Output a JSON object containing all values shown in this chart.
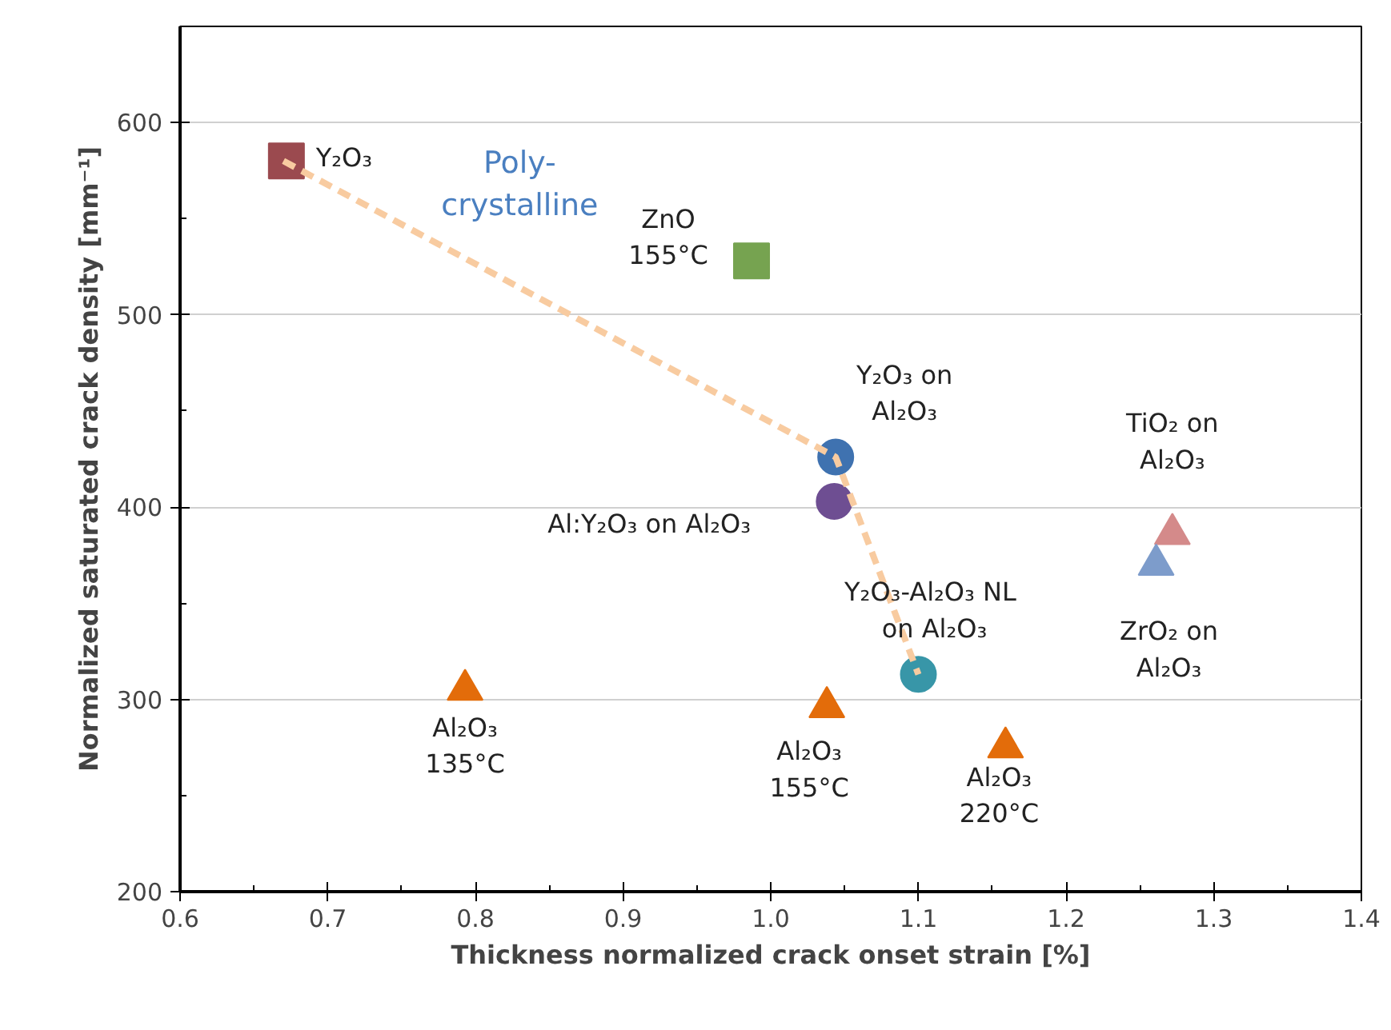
{
  "chart_data": {
    "type": "scatter",
    "xlabel": "Thickness normalized crack onset strain [%]",
    "ylabel": "Normalized saturated crack density [mm⁻¹]",
    "xlim": [
      0.6,
      1.4
    ],
    "xticks": [
      0.6,
      0.7,
      0.8,
      0.9,
      {
        "value": 1.0,
        "label": "1.0"
      },
      1.1,
      1.2,
      1.3,
      1.4
    ],
    "ylim": [
      200,
      650
    ],
    "yticks": [
      200,
      300,
      400,
      500,
      600
    ],
    "grid": "y",
    "annotations": [
      "Poly-\ncrystalline"
    ],
    "series": [
      {
        "type": "line",
        "x": [
          0.67,
          1.044,
          1.1
        ],
        "values": [
          580,
          426,
          313
        ],
        "color": "#f8cba0",
        "line_style": "dashed",
        "marker": "none"
      },
      {
        "name": "Y₂O₃",
        "x": [
          0.672
        ],
        "values": [
          580
        ],
        "color": "#9b4a4f",
        "marker": "square"
      },
      {
        "name": "ZnO\n155°C",
        "x": [
          0.987
        ],
        "values": [
          528
        ],
        "color": "#76a350",
        "marker": "square"
      },
      {
        "name": "Y₂O₃ on\nAl₂O₃",
        "x": [
          1.044
        ],
        "values": [
          426
        ],
        "color": "#3f72b0",
        "marker": "circle"
      },
      {
        "name": "Al:Y₂O₃  on Al₂O₃",
        "x": [
          1.043
        ],
        "values": [
          403
        ],
        "color": "#6e4e92",
        "marker": "circle"
      },
      {
        "name": "Y₂O₃-Al₂O₃  NL\non Al₂O₃",
        "x": [
          1.1
        ],
        "values": [
          313
        ],
        "color": "#3896a8",
        "marker": "circle"
      },
      {
        "name": "TiO₂ on\nAl₂O₃",
        "x": [
          1.272
        ],
        "values": [
          386
        ],
        "color": "#d48a8a",
        "marker": "triangle"
      },
      {
        "name": "ZrO₂ on\nAl₂O₃",
        "x": [
          1.261
        ],
        "values": [
          370
        ],
        "color": "#7d9ccb",
        "marker": "triangle"
      },
      {
        "name": "Al₂O₃\n135°C",
        "x": [
          0.793
        ],
        "values": [
          305
        ],
        "color": "#e36c0a",
        "marker": "triangle"
      },
      {
        "name": "Al₂O₃\n155°C",
        "x": [
          1.038
        ],
        "values": [
          296
        ],
        "color": "#e36c0a",
        "marker": "triangle"
      },
      {
        "name": "Al₂O₃\n220°C",
        "x": [
          1.159
        ],
        "values": [
          275
        ],
        "color": "#e36c0a",
        "marker": "triangle"
      }
    ]
  }
}
